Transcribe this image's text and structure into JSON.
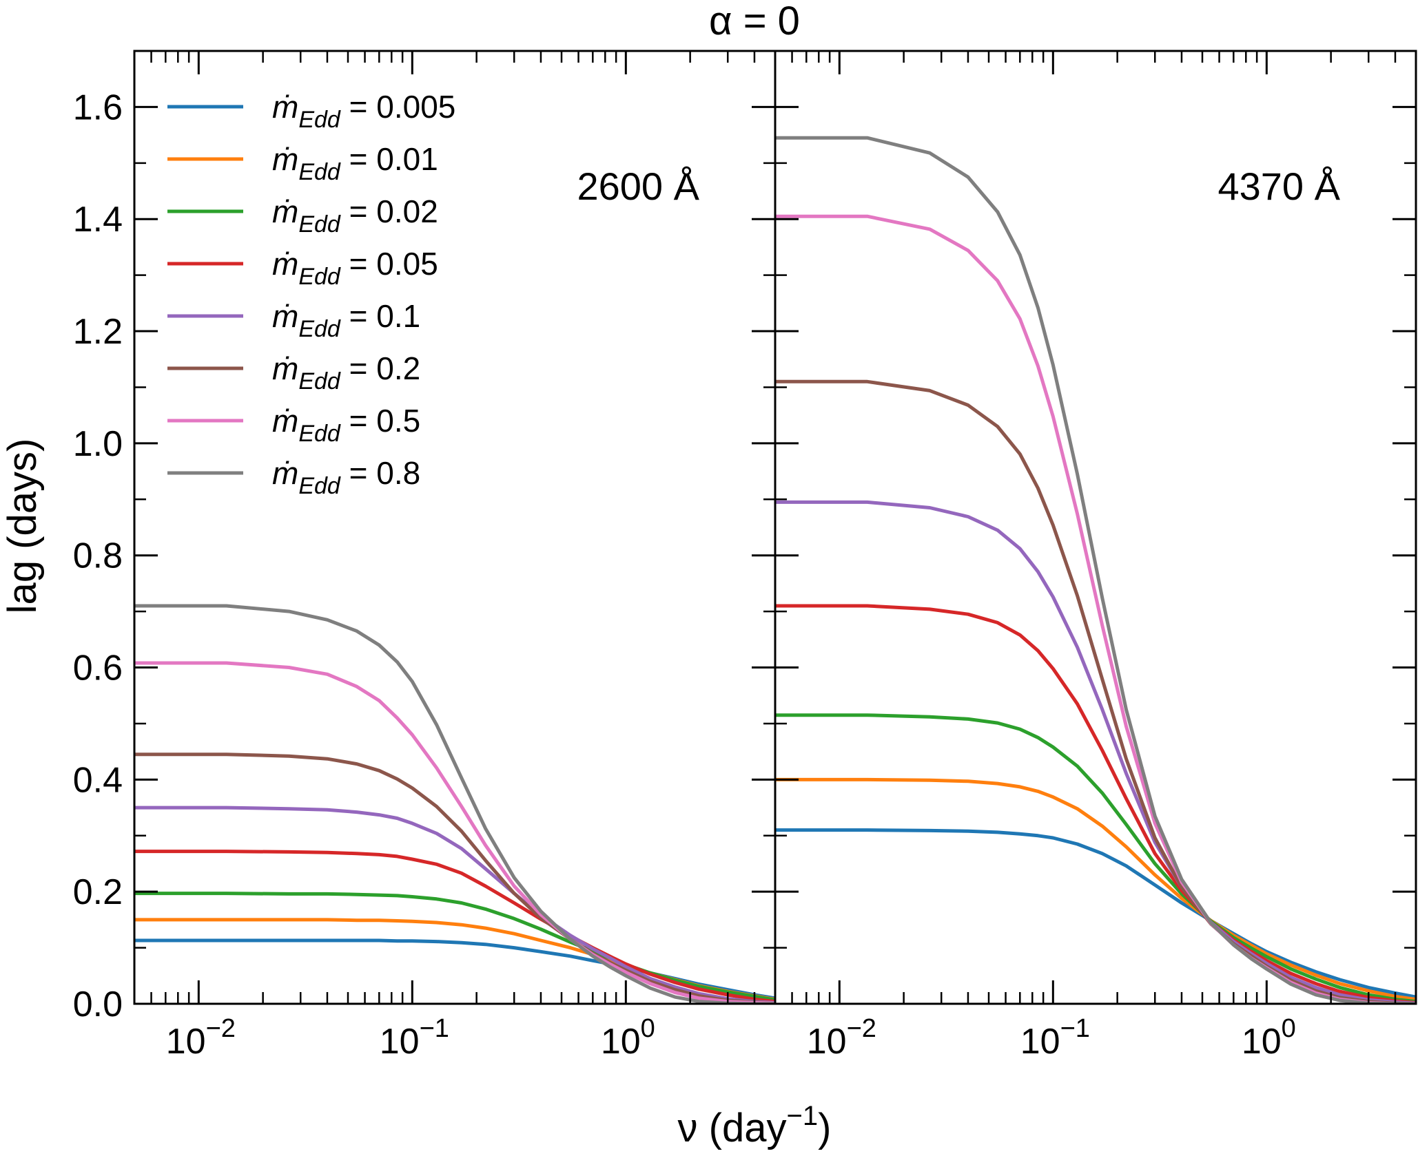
{
  "chart_data": {
    "type": "line",
    "title": "α = 0",
    "xlabel": "ν (day⁻¹)",
    "ylabel": "lag (days)",
    "xscale": "log",
    "xlim": [
      0.005,
      5.0
    ],
    "ylim": [
      0.0,
      1.7
    ],
    "yticks": [
      "0.0",
      "0.2",
      "0.4",
      "0.6",
      "0.8",
      "1.0",
      "1.2",
      "1.4",
      "1.6"
    ],
    "xticks": [
      {
        "value": 0.01,
        "base": "10",
        "exp": "−2"
      },
      {
        "value": 0.1,
        "base": "10",
        "exp": "−1"
      },
      {
        "value": 1,
        "base": "10",
        "exp": "0"
      }
    ],
    "x": [
      0.005,
      0.0135,
      0.0265,
      0.04,
      0.055,
      0.07,
      0.085,
      0.1,
      0.13,
      0.17,
      0.22,
      0.3,
      0.4,
      0.55,
      0.7,
      0.85,
      1.0,
      1.3,
      1.7,
      2.2,
      3.0,
      4.0,
      5.0
    ],
    "legend": {
      "position": "top-left",
      "label_prefix": "ṁ",
      "label_subscript": "Edd",
      "label_eq": " = "
    },
    "panels": [
      {
        "label": "2600 Å",
        "series": [
          {
            "name": "0.005",
            "color": "#1f77b4",
            "values": [
              0.113,
              0.113,
              0.113,
              0.113,
              0.113,
              0.113,
              0.112,
              0.112,
              0.111,
              0.109,
              0.106,
              0.1,
              0.093,
              0.085,
              0.077,
              0.071,
              0.065,
              0.055,
              0.045,
              0.035,
              0.025,
              0.016,
              0.01
            ]
          },
          {
            "name": "0.01",
            "color": "#ff7f0e",
            "values": [
              0.15,
              0.15,
              0.15,
              0.15,
              0.149,
              0.149,
              0.148,
              0.147,
              0.145,
              0.141,
              0.135,
              0.125,
              0.113,
              0.1,
              0.088,
              0.077,
              0.068,
              0.055,
              0.043,
              0.032,
              0.022,
              0.014,
              0.008
            ]
          },
          {
            "name": "0.02",
            "color": "#2ca02c",
            "values": [
              0.197,
              0.197,
              0.196,
              0.196,
              0.195,
              0.194,
              0.193,
              0.191,
              0.187,
              0.18,
              0.169,
              0.152,
              0.133,
              0.11,
              0.094,
              0.081,
              0.07,
              0.055,
              0.042,
              0.031,
              0.021,
              0.013,
              0.007
            ]
          },
          {
            "name": "0.05",
            "color": "#d62728",
            "values": [
              0.272,
              0.272,
              0.271,
              0.27,
              0.268,
              0.266,
              0.263,
              0.258,
              0.249,
              0.233,
              0.21,
              0.18,
              0.151,
              0.121,
              0.1,
              0.084,
              0.071,
              0.053,
              0.038,
              0.026,
              0.016,
              0.008,
              0.004
            ]
          },
          {
            "name": "0.1",
            "color": "#9467bd",
            "values": [
              0.35,
              0.35,
              0.348,
              0.346,
              0.342,
              0.337,
              0.331,
              0.322,
              0.304,
              0.277,
              0.241,
              0.197,
              0.158,
              0.122,
              0.098,
              0.081,
              0.066,
              0.045,
              0.03,
              0.018,
              0.009,
              0.004,
              0.002
            ]
          },
          {
            "name": "0.2",
            "color": "#8c564b",
            "values": [
              0.445,
              0.445,
              0.442,
              0.437,
              0.428,
              0.416,
              0.401,
              0.385,
              0.352,
              0.308,
              0.256,
              0.197,
              0.153,
              0.115,
              0.09,
              0.073,
              0.06,
              0.04,
              0.025,
              0.014,
              0.006,
              0.003,
              0.001
            ]
          },
          {
            "name": "0.5",
            "color": "#e377c2",
            "values": [
              0.608,
              0.608,
              0.6,
              0.588,
              0.566,
              0.541,
              0.51,
              0.48,
              0.421,
              0.352,
              0.283,
              0.21,
              0.159,
              0.115,
              0.088,
              0.07,
              0.056,
              0.036,
              0.02,
              0.01,
              0.004,
              0.002,
              0.001
            ]
          },
          {
            "name": "0.8",
            "color": "#7f7f7f",
            "values": [
              0.71,
              0.71,
              0.7,
              0.685,
              0.665,
              0.64,
              0.61,
              0.575,
              0.498,
              0.403,
              0.313,
              0.225,
              0.165,
              0.115,
              0.085,
              0.065,
              0.05,
              0.028,
              0.012,
              0.004,
              0.001,
              0.0,
              0.0
            ]
          }
        ]
      },
      {
        "label": "4370 Å",
        "series": [
          {
            "name": "0.005",
            "color": "#1f77b4",
            "values": [
              0.31,
              0.31,
              0.309,
              0.308,
              0.306,
              0.303,
              0.3,
              0.296,
              0.285,
              0.268,
              0.246,
              0.212,
              0.18,
              0.148,
              0.125,
              0.107,
              0.093,
              0.074,
              0.057,
              0.043,
              0.029,
              0.019,
              0.012
            ]
          },
          {
            "name": "0.01",
            "color": "#ff7f0e",
            "values": [
              0.4,
              0.4,
              0.399,
              0.397,
              0.393,
              0.387,
              0.379,
              0.369,
              0.348,
              0.317,
              0.28,
              0.23,
              0.188,
              0.148,
              0.122,
              0.104,
              0.089,
              0.069,
              0.051,
              0.036,
              0.023,
              0.013,
              0.008
            ]
          },
          {
            "name": "0.02",
            "color": "#2ca02c",
            "values": [
              0.515,
              0.515,
              0.512,
              0.508,
              0.501,
              0.49,
              0.475,
              0.458,
              0.424,
              0.376,
              0.32,
              0.25,
              0.196,
              0.147,
              0.118,
              0.099,
              0.084,
              0.062,
              0.044,
              0.029,
              0.016,
              0.008,
              0.004
            ]
          },
          {
            "name": "0.05",
            "color": "#d62728",
            "values": [
              0.71,
              0.71,
              0.704,
              0.695,
              0.68,
              0.658,
              0.63,
              0.598,
              0.535,
              0.452,
              0.366,
              0.268,
              0.202,
              0.145,
              0.114,
              0.093,
              0.077,
              0.054,
              0.036,
              0.022,
              0.011,
              0.005,
              0.002
            ]
          },
          {
            "name": "0.1",
            "color": "#9467bd",
            "values": [
              0.895,
              0.895,
              0.885,
              0.869,
              0.845,
              0.812,
              0.771,
              0.726,
              0.636,
              0.525,
              0.411,
              0.288,
              0.208,
              0.145,
              0.111,
              0.089,
              0.072,
              0.047,
              0.029,
              0.016,
              0.007,
              0.003,
              0.001
            ]
          },
          {
            "name": "0.2",
            "color": "#8c564b",
            "values": [
              1.11,
              1.11,
              1.094,
              1.068,
              1.03,
              0.981,
              0.92,
              0.854,
              0.728,
              0.579,
              0.437,
              0.296,
              0.208,
              0.142,
              0.107,
              0.085,
              0.067,
              0.042,
              0.023,
              0.011,
              0.004,
              0.001,
              0.0
            ]
          },
          {
            "name": "0.5",
            "color": "#e377c2",
            "values": [
              1.405,
              1.405,
              1.382,
              1.344,
              1.29,
              1.222,
              1.138,
              1.048,
              0.874,
              0.675,
              0.495,
              0.322,
              0.217,
              0.143,
              0.105,
              0.081,
              0.064,
              0.038,
              0.019,
              0.008,
              0.002,
              0.0,
              0.0
            ]
          },
          {
            "name": "0.8",
            "color": "#7f7f7f",
            "values": [
              1.545,
              1.545,
              1.518,
              1.475,
              1.413,
              1.336,
              1.242,
              1.14,
              0.945,
              0.724,
              0.525,
              0.335,
              0.222,
              0.144,
              0.105,
              0.08,
              0.062,
              0.035,
              0.016,
              0.006,
              0.001,
              0.0,
              0.0
            ]
          }
        ]
      }
    ]
  }
}
